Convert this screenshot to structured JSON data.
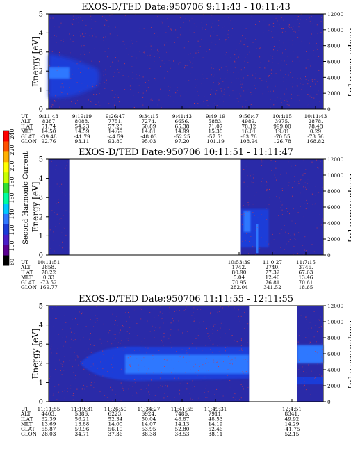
{
  "colors": {
    "background": "#2a2aa8",
    "band_dark": "#1a3cd8",
    "band_bright": "#2f78ff",
    "noise": "#c83a4e",
    "data_gap": "#ffffff"
  },
  "colorbar": {
    "label": "Second Harmonic Current",
    "tick_labels": [
      "80",
      "100",
      "120",
      "140",
      "160",
      "180",
      "200",
      "220",
      "240"
    ],
    "colors": [
      "#000000",
      "#5a0090",
      "#4a1ec8",
      "#1a3cd8",
      "#2f78ff",
      "#00c8ff",
      "#00ffa0",
      "#30e030",
      "#c8ff00",
      "#ffff00",
      "#ffb000",
      "#ff5000",
      "#ff0000"
    ]
  },
  "chart_data": [
    {
      "type": "heatmap",
      "title": "EXOS-D/TED   Date:950706   9:11:43 - 10:11:43",
      "ylabel": "Energy [eV]",
      "y2label": "Temperature [K]",
      "ylim": [
        0,
        5
      ],
      "y2lim": [
        0,
        12000
      ],
      "y_ticks": [
        "0",
        "1",
        "2",
        "3",
        "4",
        "5"
      ],
      "y2_ticks": [
        "0",
        "2000",
        "4000",
        "6000",
        "8000",
        "10000",
        "12000"
      ],
      "row_labels": [
        "UT",
        "ALT",
        "ILAT",
        "MLT",
        "GLAT",
        "GLON"
      ],
      "columns": [
        [
          "9:11:43",
          "8387",
          "51.74",
          "14.50",
          "-39.48",
          "92.76"
        ],
        [
          "9:19:19",
          "8088.",
          "54.23",
          "14.59",
          "-41.79",
          "93.11"
        ],
        [
          "9:26:47",
          "7751.",
          "57.23",
          "14.69",
          "-44.59",
          "93.80"
        ],
        [
          "9:34:15",
          "7274.",
          "60.89",
          "14.81",
          "-48.03",
          "95.03"
        ],
        [
          "9:41:43",
          "6656.",
          "65.38",
          "14.99",
          "-52.25",
          "97.20"
        ],
        [
          "9:49:19",
          "5883.",
          "71.07",
          "15.30",
          "-57.51",
          "101.19"
        ],
        [
          "9:56:47",
          "4989.",
          "78.12",
          "16.01",
          "-63.76",
          "108.94"
        ],
        [
          "10:4:15",
          "3975.",
          "999.00",
          "19.01",
          "-70.55",
          "126.78"
        ],
        [
          "10:11:43",
          "2878.",
          "78.48",
          "0.29",
          "-73.56",
          "168.82"
        ]
      ],
      "features": "low-energy band near 2 eV fading after ~9:30 UT"
    },
    {
      "type": "heatmap",
      "title": "EXOS-D/TED   Date:950706   10:11:51 - 11:11:47",
      "ylabel": "Energy [eV]",
      "y2label": "Temperature [K]",
      "ylim": [
        0,
        5
      ],
      "y2lim": [
        0,
        12000
      ],
      "y_ticks": [
        "0",
        "1",
        "2",
        "3",
        "4",
        "5"
      ],
      "y2_ticks": [
        "0",
        "2000",
        "4000",
        "6000",
        "8000",
        "10000",
        "12000"
      ],
      "row_labels": [
        "UT",
        "ALT",
        "ILAT",
        "MLT",
        "GLAT",
        "GLON"
      ],
      "columns": [
        [
          "10:11:51",
          "2858.",
          "78.22",
          "0.33",
          "-73.52",
          "169.77"
        ],
        [
          "10:53:39",
          "1742.",
          "80.90",
          "5.04",
          "70.95",
          "282.04"
        ],
        [
          "11:0:27",
          "2740.",
          "77.32",
          "12.46",
          "76.81",
          "341.52"
        ],
        [
          "11:7:15",
          "3746.",
          "67.63",
          "13.46",
          "70.61",
          "18.65"
        ]
      ],
      "features": "data gap between ~10:14 and ~10:53 UT; enhancement near 1-2 eV after 10:53"
    },
    {
      "type": "heatmap",
      "title": "EXOS-D/TED   Date:950706   11:11:55 - 12:11:55",
      "ylabel": "Energy [eV]",
      "y2label": "Temperature [K]",
      "ylim": [
        0,
        5
      ],
      "y2lim": [
        0,
        12000
      ],
      "y_ticks": [
        "0",
        "1",
        "2",
        "3",
        "4",
        "5"
      ],
      "y2_ticks": [
        "0",
        "2000",
        "4000",
        "6000",
        "8000",
        "10000",
        "12000"
      ],
      "row_labels": [
        "UT",
        "ALT",
        "ILAT",
        "MLT",
        "GLAT",
        "GLON"
      ],
      "columns": [
        [
          "11:11:55",
          "4403.",
          "62.39",
          "13.69",
          "65.87",
          "28.03"
        ],
        [
          "11:19:31",
          "5386.",
          "56.21",
          "13.88",
          "59.96",
          "34.71"
        ],
        [
          "11:26:59",
          "6223.",
          "52.34",
          "14.00",
          "56.19",
          "37.36"
        ],
        [
          "11:34:27",
          "6924.",
          "50.04",
          "14.07",
          "53.95",
          "38.38"
        ],
        [
          "11:41:55",
          "7485.",
          "48.87",
          "14.13",
          "52.80",
          "38.53"
        ],
        [
          "11:49:31",
          "7911.",
          "48.53",
          "14.19",
          "52.46",
          "38.11"
        ],
        [
          "12:4:51",
          "8341.",
          "49.92",
          "14.29",
          "-41.75",
          "52.15"
        ]
      ],
      "features": "broad band 1-3 eV from ~11:19 UT; data gap near 11:59-12:04 UT"
    }
  ]
}
